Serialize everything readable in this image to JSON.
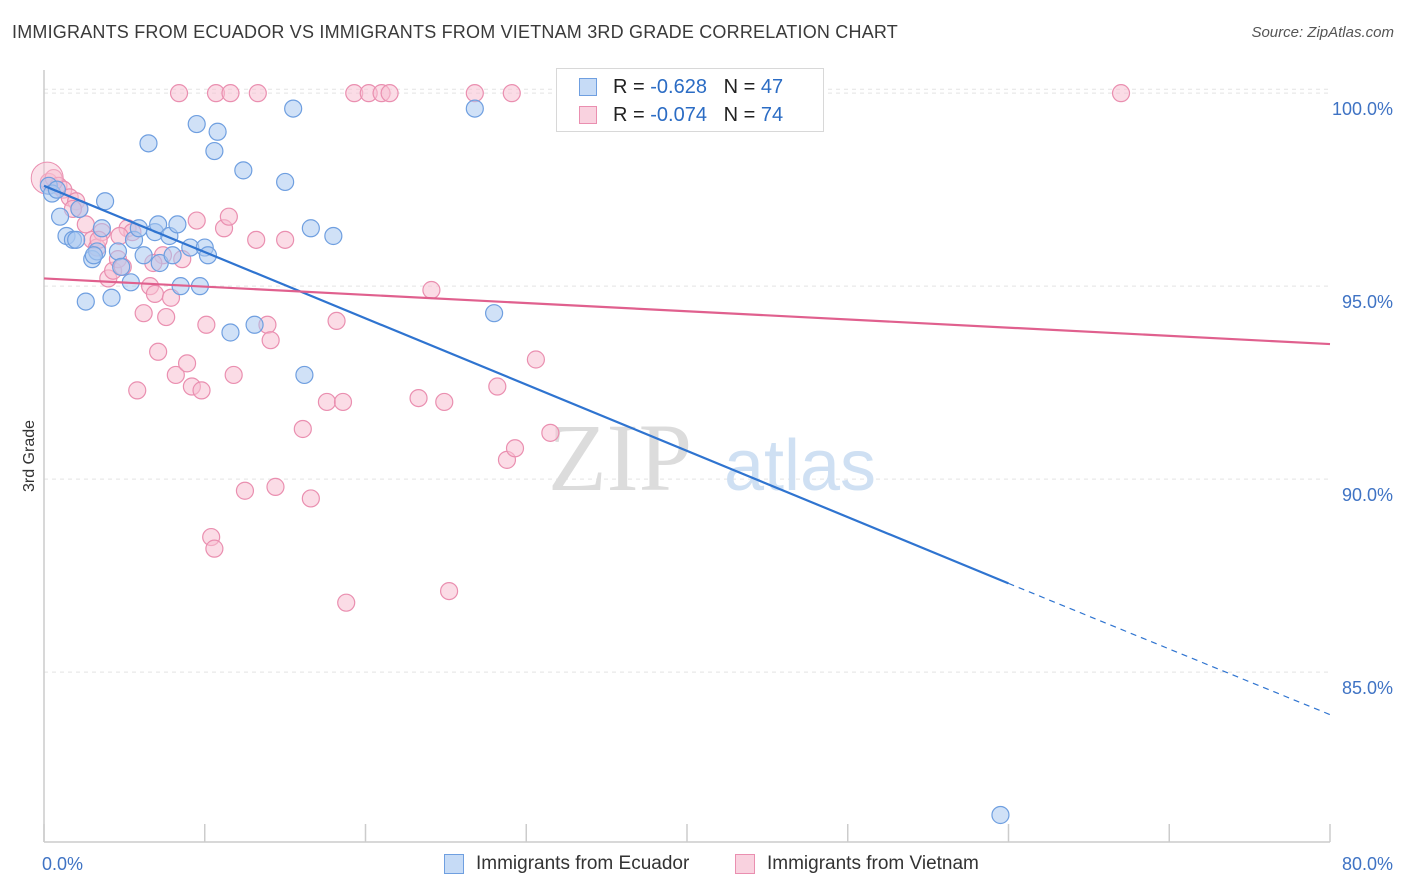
{
  "header": {
    "title": "IMMIGRANTS FROM ECUADOR VS IMMIGRANTS FROM VIETNAM 3RD GRADE CORRELATION CHART",
    "source": "Source: ZipAtlas.com"
  },
  "watermark": {
    "zip": "ZIP",
    "atlas": "atlas"
  },
  "legend": {
    "r_label": "R = ",
    "n_label": "N = ",
    "ecuador": {
      "r": "-0.628",
      "n": "47"
    },
    "vietnam": {
      "r": "-0.074",
      "n": "74"
    }
  },
  "colors": {
    "ecuador_fill": "#a9c8f0",
    "ecuador_stroke": "#6f9fe0",
    "ecuador_line": "#2f74d0",
    "vietnam_fill": "#f7bfd1",
    "vietnam_stroke": "#ea8fb0",
    "vietnam_line": "#e0608e",
    "tick_text": "#3f73c4",
    "grid": "#e3e3e3"
  },
  "chart_data": {
    "type": "scatter",
    "title": "IMMIGRANTS FROM ECUADOR VS IMMIGRANTS FROM VIETNAM 3RD GRADE CORRELATION CHART",
    "xlabel": "",
    "ylabel": "3rd Grade",
    "xlim": [
      0,
      80
    ],
    "ylim": [
      80.6,
      100.6
    ],
    "x_tick_labels": [
      "0.0%",
      "80.0%"
    ],
    "y_ticks": [
      85,
      90,
      95,
      100
    ],
    "y_tick_labels": [
      "85.0%",
      "90.0%",
      "95.0%",
      "100.0%"
    ],
    "grid": true,
    "legend_position": "bottom",
    "series": [
      {
        "name": "Immigrants from Ecuador",
        "r": -0.628,
        "n": 47,
        "trend": {
          "x0": 0,
          "y0": 97.6,
          "x1": 60,
          "y1": 87.3,
          "dash_x1": 80,
          "dash_y1": 83.9
        },
        "points": [
          [
            0.3,
            97.6
          ],
          [
            0.5,
            97.4
          ],
          [
            0.8,
            97.5
          ],
          [
            1.0,
            96.8
          ],
          [
            1.4,
            96.3
          ],
          [
            1.8,
            96.2
          ],
          [
            2.2,
            97.0
          ],
          [
            2.6,
            94.6
          ],
          [
            3.0,
            95.7
          ],
          [
            3.3,
            95.9
          ],
          [
            3.6,
            96.5
          ],
          [
            3.8,
            97.2
          ],
          [
            4.2,
            94.7
          ],
          [
            4.6,
            95.9
          ],
          [
            4.8,
            95.5
          ],
          [
            5.4,
            95.1
          ],
          [
            5.6,
            96.2
          ],
          [
            5.9,
            96.5
          ],
          [
            6.2,
            95.8
          ],
          [
            6.5,
            98.7
          ],
          [
            6.9,
            96.4
          ],
          [
            7.1,
            96.6
          ],
          [
            7.2,
            95.6
          ],
          [
            7.8,
            96.3
          ],
          [
            8.0,
            95.8
          ],
          [
            8.3,
            96.6
          ],
          [
            8.5,
            95.0
          ],
          [
            9.1,
            96.0
          ],
          [
            9.5,
            99.2
          ],
          [
            9.7,
            95.0
          ],
          [
            10.0,
            96.0
          ],
          [
            10.2,
            95.8
          ],
          [
            10.6,
            98.5
          ],
          [
            10.8,
            99.0
          ],
          [
            11.6,
            93.8
          ],
          [
            12.4,
            98.0
          ],
          [
            13.1,
            94.0
          ],
          [
            15.0,
            97.7
          ],
          [
            15.5,
            99.6
          ],
          [
            16.2,
            92.7
          ],
          [
            16.6,
            96.5
          ],
          [
            18.0,
            96.3
          ],
          [
            26.8,
            99.6
          ],
          [
            28.0,
            94.3
          ],
          [
            59.5,
            81.3
          ],
          [
            2.0,
            96.2
          ],
          [
            3.1,
            95.8
          ]
        ]
      },
      {
        "name": "Immigrants from Vietnam",
        "r": -0.074,
        "n": 74,
        "trend": {
          "x0": 0,
          "y0": 95.2,
          "x1": 80,
          "y1": 93.5
        },
        "points": [
          [
            0.3,
            97.7
          ],
          [
            0.6,
            97.8
          ],
          [
            0.9,
            97.6
          ],
          [
            1.2,
            97.5
          ],
          [
            1.6,
            97.3
          ],
          [
            2.0,
            97.2
          ],
          [
            2.2,
            97.0
          ],
          [
            2.6,
            96.6
          ],
          [
            3.0,
            96.2
          ],
          [
            3.3,
            96.0
          ],
          [
            3.6,
            96.4
          ],
          [
            4.0,
            95.2
          ],
          [
            4.3,
            95.4
          ],
          [
            4.6,
            95.7
          ],
          [
            4.9,
            95.5
          ],
          [
            5.2,
            96.5
          ],
          [
            5.5,
            96.4
          ],
          [
            5.8,
            92.3
          ],
          [
            6.2,
            94.3
          ],
          [
            6.6,
            95.0
          ],
          [
            6.9,
            94.8
          ],
          [
            7.1,
            93.3
          ],
          [
            7.4,
            95.8
          ],
          [
            7.6,
            94.2
          ],
          [
            7.9,
            94.7
          ],
          [
            8.2,
            92.7
          ],
          [
            8.6,
            95.7
          ],
          [
            8.9,
            93.0
          ],
          [
            9.2,
            92.4
          ],
          [
            9.5,
            96.7
          ],
          [
            9.8,
            92.3
          ],
          [
            10.1,
            94.0
          ],
          [
            10.4,
            88.5
          ],
          [
            10.6,
            88.2
          ],
          [
            11.2,
            96.5
          ],
          [
            11.5,
            96.8
          ],
          [
            11.8,
            92.7
          ],
          [
            12.5,
            89.7
          ],
          [
            13.2,
            96.2
          ],
          [
            13.9,
            94.0
          ],
          [
            14.1,
            93.6
          ],
          [
            14.4,
            89.8
          ],
          [
            15.0,
            96.2
          ],
          [
            16.1,
            91.3
          ],
          [
            16.6,
            89.5
          ],
          [
            17.6,
            92.0
          ],
          [
            18.2,
            94.1
          ],
          [
            18.6,
            92.0
          ],
          [
            18.8,
            86.8
          ],
          [
            19.3,
            100.0
          ],
          [
            20.2,
            100.0
          ],
          [
            21.0,
            100.0
          ],
          [
            21.5,
            100.0
          ],
          [
            23.3,
            92.1
          ],
          [
            24.1,
            94.9
          ],
          [
            24.9,
            92.0
          ],
          [
            25.2,
            87.1
          ],
          [
            26.8,
            100.0
          ],
          [
            28.2,
            92.4
          ],
          [
            28.8,
            90.5
          ],
          [
            29.1,
            100.0
          ],
          [
            29.3,
            90.8
          ],
          [
            30.6,
            93.1
          ],
          [
            31.5,
            91.2
          ],
          [
            43.0,
            100.0
          ],
          [
            67.0,
            100.0
          ],
          [
            8.4,
            100.0
          ],
          [
            10.7,
            100.0
          ],
          [
            11.6,
            100.0
          ],
          [
            13.3,
            100.0
          ],
          [
            1.8,
            97.0
          ],
          [
            3.4,
            96.2
          ],
          [
            4.7,
            96.3
          ],
          [
            6.8,
            95.6
          ]
        ]
      }
    ]
  }
}
